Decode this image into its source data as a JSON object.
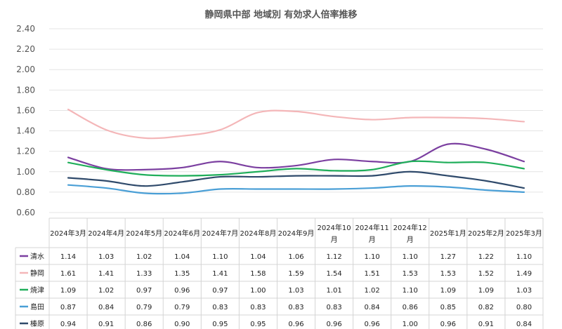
{
  "chart_data": {
    "type": "line",
    "title": "静岡県中部 地域別 有効求人倍率推移",
    "categories": [
      [
        "2024年3月"
      ],
      [
        "2024年4月"
      ],
      [
        "2024年5月"
      ],
      [
        "2024年6月"
      ],
      [
        "2024年7月"
      ],
      [
        "2024年8月"
      ],
      [
        "2024年9月"
      ],
      [
        "2024年10",
        "月"
      ],
      [
        "2024年11",
        "月"
      ],
      [
        "2024年12",
        "月"
      ],
      [
        "2025年1月"
      ],
      [
        "2025年2月"
      ],
      [
        "2025年3月"
      ]
    ],
    "ylim": [
      0.6,
      2.4
    ],
    "yticks": [
      "0.60",
      "0.80",
      "1.00",
      "1.20",
      "1.40",
      "1.60",
      "1.80",
      "2.00",
      "2.20",
      "2.40"
    ],
    "grid": true,
    "legend": "data-table-below",
    "series": [
      {
        "name": "清水",
        "color": "#7b3fa0",
        "values": [
          1.14,
          1.03,
          1.02,
          1.04,
          1.1,
          1.04,
          1.06,
          1.12,
          1.1,
          1.1,
          1.27,
          1.22,
          1.1
        ]
      },
      {
        "name": "静岡",
        "color": "#f4b6b8",
        "values": [
          1.61,
          1.41,
          1.33,
          1.35,
          1.41,
          1.58,
          1.59,
          1.54,
          1.51,
          1.53,
          1.53,
          1.52,
          1.49
        ]
      },
      {
        "name": "焼津",
        "color": "#1fae5a",
        "values": [
          1.09,
          1.02,
          0.97,
          0.96,
          0.97,
          1.0,
          1.03,
          1.01,
          1.02,
          1.1,
          1.09,
          1.09,
          1.03
        ]
      },
      {
        "name": "島田",
        "color": "#4a9fd6",
        "values": [
          0.87,
          0.84,
          0.79,
          0.79,
          0.83,
          0.83,
          0.83,
          0.83,
          0.84,
          0.86,
          0.85,
          0.82,
          0.8
        ]
      },
      {
        "name": "榛原",
        "color": "#2f4a6b",
        "values": [
          0.94,
          0.91,
          0.86,
          0.9,
          0.95,
          0.95,
          0.96,
          0.96,
          0.96,
          1.0,
          0.96,
          0.91,
          0.84
        ]
      }
    ],
    "value_labels": [
      [
        "1.14",
        "1.03",
        "1.02",
        "1.04",
        "1.10",
        "1.04",
        "1.06",
        "1.12",
        "1.10",
        "1.10",
        "1.27",
        "1.22",
        "1.10"
      ],
      [
        "1.61",
        "1.41",
        "1.33",
        "1.35",
        "1.41",
        "1.58",
        "1.59",
        "1.54",
        "1.51",
        "1.53",
        "1.53",
        "1.52",
        "1.49"
      ],
      [
        "1.09",
        "1.02",
        "0.97",
        "0.96",
        "0.97",
        "1.00",
        "1.03",
        "1.01",
        "1.02",
        "1.10",
        "1.09",
        "1.09",
        "1.03"
      ],
      [
        "0.87",
        "0.84",
        "0.79",
        "0.79",
        "0.83",
        "0.83",
        "0.83",
        "0.83",
        "0.84",
        "0.86",
        "0.85",
        "0.82",
        "0.80"
      ],
      [
        "0.94",
        "0.91",
        "0.86",
        "0.90",
        "0.95",
        "0.95",
        "0.96",
        "0.96",
        "0.96",
        "1.00",
        "0.96",
        "0.91",
        "0.84"
      ]
    ]
  }
}
